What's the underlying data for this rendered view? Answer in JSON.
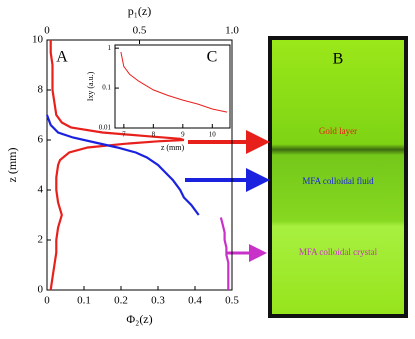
{
  "chart_data": [
    {
      "type": "line",
      "xlabel": "Φ₂(z)",
      "x2label": "p₁(z)",
      "ylabel": "z (mm)",
      "xlim": [
        0,
        0.5
      ],
      "xticks": [
        0,
        0.1,
        0.2,
        0.3,
        0.4,
        0.5
      ],
      "x2lim": [
        0,
        1
      ],
      "x2ticks": [
        0,
        0.5,
        {
          "value": 1,
          "label": "1.0"
        }
      ],
      "ylim": [
        0,
        10
      ],
      "yticks": [
        0,
        2,
        4,
        6,
        8,
        10
      ],
      "annotations": [
        "A",
        "C"
      ],
      "series": [
        {
          "color": "#e8201c",
          "axis": "x2",
          "z": [
            10,
            9.5,
            9,
            8.5,
            8,
            7.5,
            7,
            6.7,
            6.5,
            6.3,
            6.15,
            6.05,
            6,
            5.95,
            5.85,
            5.7,
            5.5,
            5.2,
            5,
            4.5,
            4,
            3.5,
            3,
            2.5,
            2,
            1.5,
            1,
            0.5,
            0
          ],
          "values": [
            0.02,
            0.02,
            0.03,
            0.03,
            0.03,
            0.04,
            0.05,
            0.08,
            0.13,
            0.3,
            0.55,
            0.72,
            0.74,
            0.6,
            0.42,
            0.22,
            0.12,
            0.07,
            0.06,
            0.05,
            0.05,
            0.06,
            0.08,
            0.06,
            0.05,
            0.05,
            0.04,
            0.03,
            0.02
          ]
        },
        {
          "color": "#1a22e0",
          "z": [
            7,
            6.6,
            6.3,
            6.1,
            5.9,
            5.7,
            5.5,
            5.3,
            5,
            4.7,
            4.4,
            4,
            3.7,
            3.4,
            3
          ],
          "values": [
            0.0,
            0.01,
            0.03,
            0.07,
            0.13,
            0.19,
            0.24,
            0.27,
            0.3,
            0.32,
            0.34,
            0.36,
            0.37,
            0.39,
            0.41
          ]
        },
        {
          "color": "#c832c8",
          "z": [
            2.9,
            2.6,
            2.3,
            2,
            1.7,
            1.4,
            1.1,
            0.8,
            0.5,
            0.2,
            0
          ],
          "values": [
            0.47,
            0.475,
            0.48,
            0.48,
            0.485,
            0.485,
            0.49,
            0.49,
            0.49,
            0.49,
            0.49
          ]
        }
      ]
    },
    {
      "type": "line",
      "xlabel": "z (mm)",
      "ylabel": "Ixy (a.u.)",
      "log_y": true,
      "xlim": [
        6.7,
        10.6
      ],
      "xticks": [
        7,
        8,
        9,
        10
      ],
      "ylim": [
        0.01,
        1.2
      ],
      "yticks": [
        0.01,
        0.1,
        1
      ],
      "series": [
        {
          "color": "#e8201c",
          "z": [
            6.9,
            7.0,
            7.2,
            7.5,
            8,
            8.5,
            9,
            9.5,
            10,
            10.5
          ],
          "values": [
            0.8,
            0.35,
            0.22,
            0.15,
            0.09,
            0.065,
            0.05,
            0.04,
            0.03,
            0.025
          ]
        }
      ]
    }
  ],
  "photo": {
    "label": "B",
    "layers": [
      "Gold layer",
      "MFA colloidal fluid",
      "MFA colloidal crystal"
    ]
  }
}
